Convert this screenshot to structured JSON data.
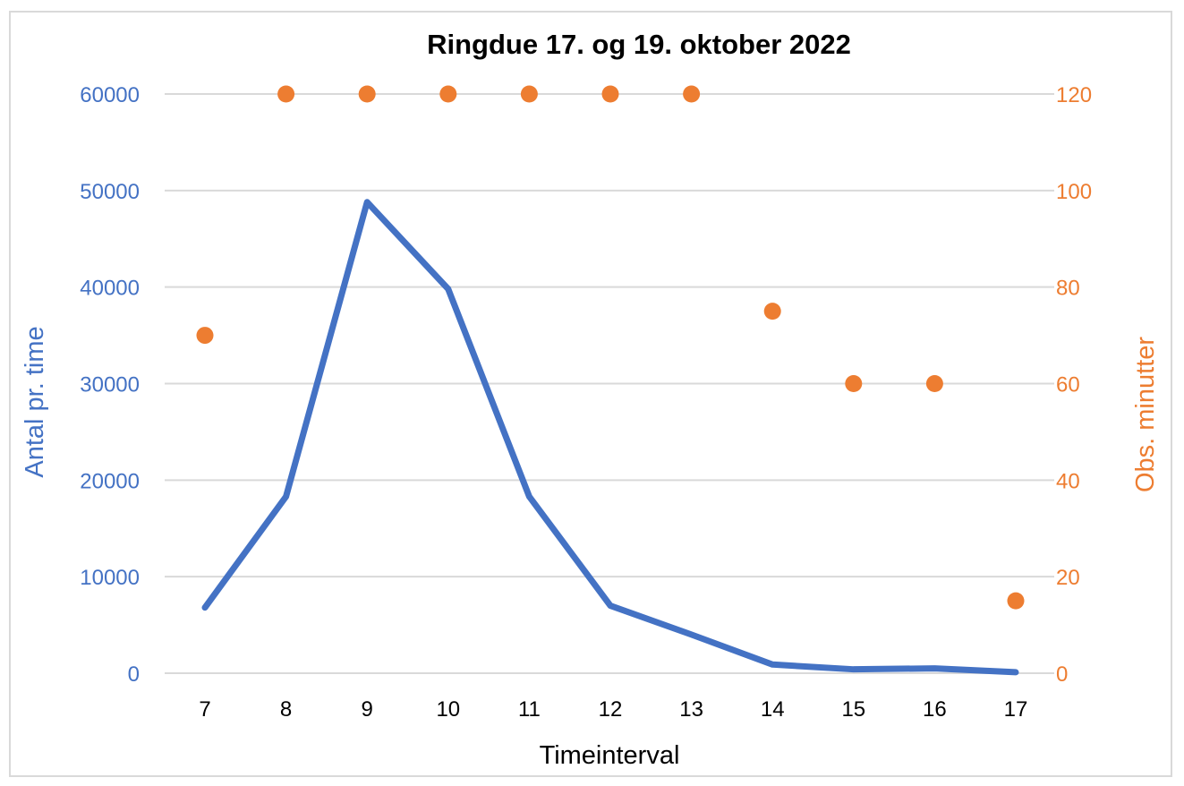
{
  "chart_data": {
    "type": "line",
    "title": "Ringdue 17. og 19. oktober 2022",
    "xlabel": "Timeinterval",
    "ylabel": "Antal pr. time",
    "y2label": "Obs. minutter",
    "categories": [
      "7",
      "8",
      "9",
      "10",
      "11",
      "12",
      "13",
      "14",
      "15",
      "16",
      "17"
    ],
    "ylim": [
      0,
      60000
    ],
    "y_ticks": [
      "0",
      "10000",
      "20000",
      "30000",
      "40000",
      "50000",
      "60000"
    ],
    "y2lim": [
      0,
      120
    ],
    "y2_ticks": [
      "0",
      "20",
      "40",
      "60",
      "80",
      "100",
      "120"
    ],
    "grid": true,
    "series": [
      {
        "axis": "left",
        "type": "line",
        "color": "#4472c4",
        "values": [
          6800,
          18300,
          48800,
          39800,
          18300,
          7000,
          4000,
          900,
          400,
          500,
          100
        ]
      },
      {
        "axis": "right",
        "type": "scatter",
        "color": "#ed7d31",
        "values": [
          70,
          120,
          120,
          120,
          120,
          120,
          120,
          75,
          60,
          60,
          15
        ]
      }
    ]
  }
}
